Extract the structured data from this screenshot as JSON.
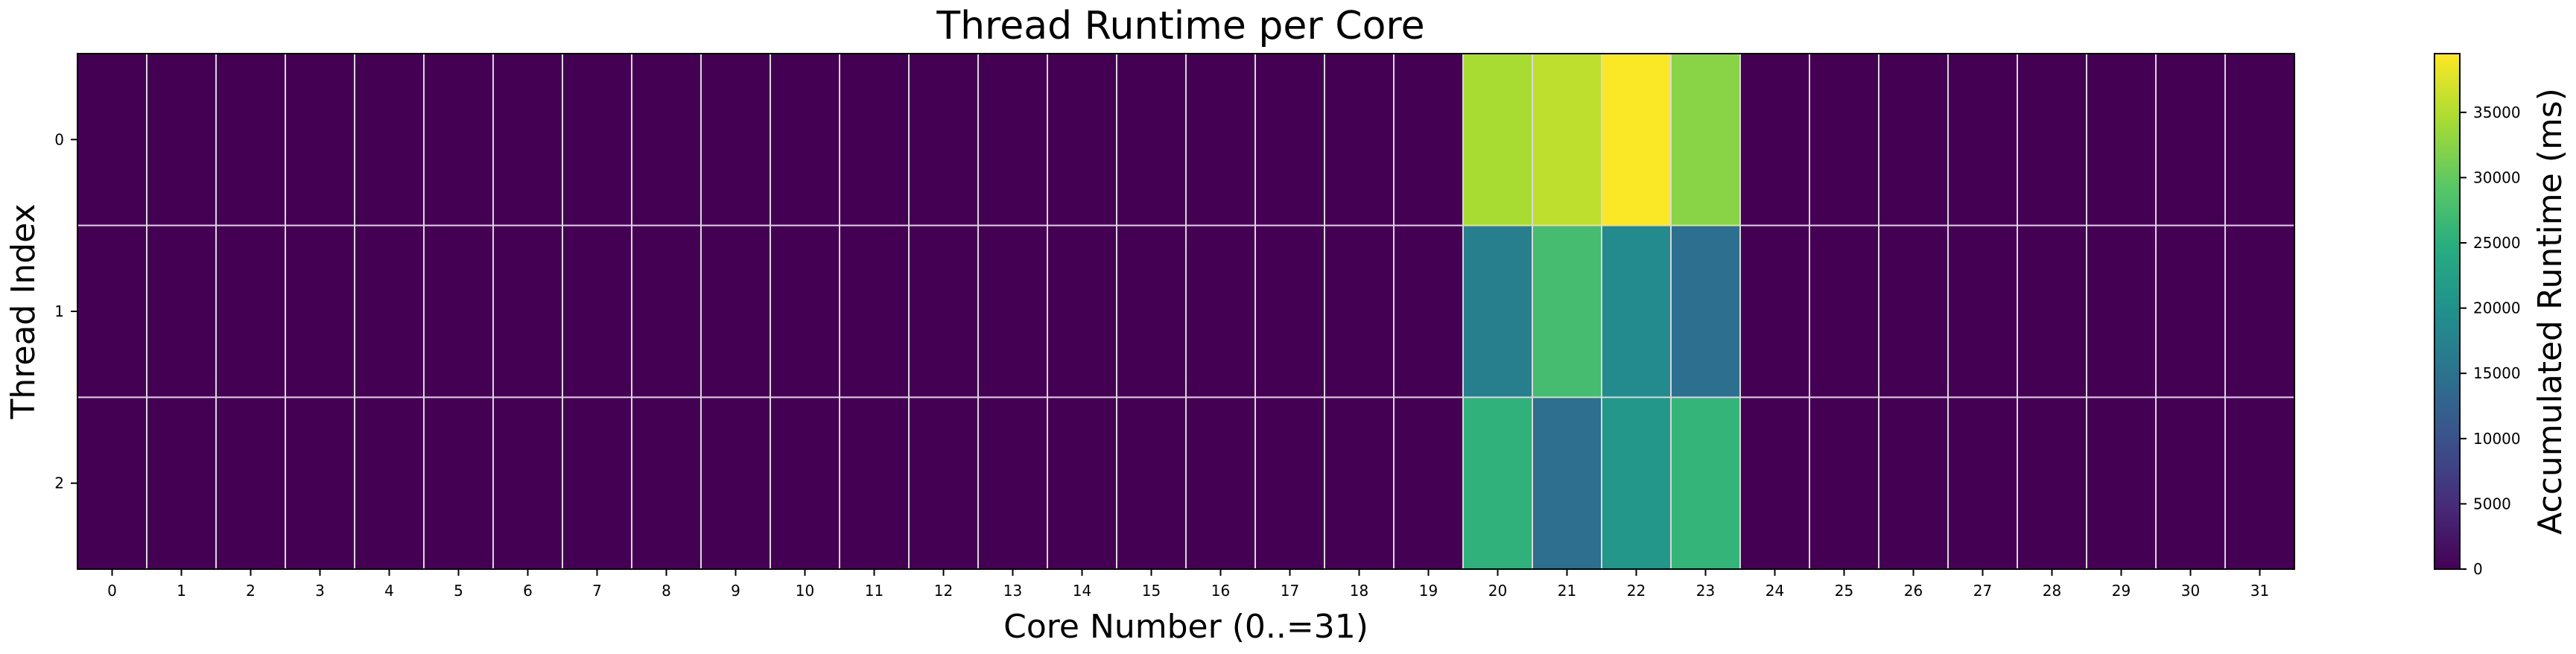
{
  "chart_data": {
    "type": "heatmap",
    "title": "Thread Runtime per Core",
    "xlabel": "Core Number (0..=31)",
    "ylabel": "Thread Index",
    "colorbar_label": "Accumulated Runtime (ms)",
    "colormap": "viridis",
    "vmin": 0,
    "vmax": 39500,
    "x_categories": [
      "0",
      "1",
      "2",
      "3",
      "4",
      "5",
      "6",
      "7",
      "8",
      "9",
      "10",
      "11",
      "12",
      "13",
      "14",
      "15",
      "16",
      "17",
      "18",
      "19",
      "20",
      "21",
      "22",
      "23",
      "24",
      "25",
      "26",
      "27",
      "28",
      "29",
      "30",
      "31"
    ],
    "y_categories": [
      "0",
      "1",
      "2"
    ],
    "values": [
      [
        0,
        0,
        0,
        0,
        0,
        0,
        0,
        0,
        0,
        0,
        0,
        0,
        0,
        0,
        0,
        0,
        0,
        0,
        0,
        0,
        34500,
        35800,
        39300,
        32500,
        0,
        0,
        0,
        0,
        0,
        0,
        0,
        0
      ],
      [
        0,
        0,
        0,
        0,
        0,
        0,
        0,
        0,
        0,
        0,
        0,
        0,
        0,
        0,
        0,
        0,
        0,
        0,
        0,
        0,
        17000,
        27500,
        19000,
        14500,
        0,
        0,
        0,
        0,
        0,
        0,
        0,
        0
      ],
      [
        0,
        0,
        0,
        0,
        0,
        0,
        0,
        0,
        0,
        0,
        0,
        0,
        0,
        0,
        0,
        0,
        0,
        0,
        0,
        0,
        25500,
        14300,
        21000,
        26000,
        0,
        0,
        0,
        0,
        0,
        0,
        0,
        0
      ]
    ],
    "colorbar_ticks": [
      0,
      5000,
      10000,
      15000,
      20000,
      25000,
      30000,
      35000
    ],
    "colorbar_tick_labels": [
      "0",
      "5000",
      "10000",
      "15000",
      "20000",
      "25000",
      "30000",
      "35000"
    ],
    "grid": true,
    "grid_color": "#d9d9d9"
  }
}
